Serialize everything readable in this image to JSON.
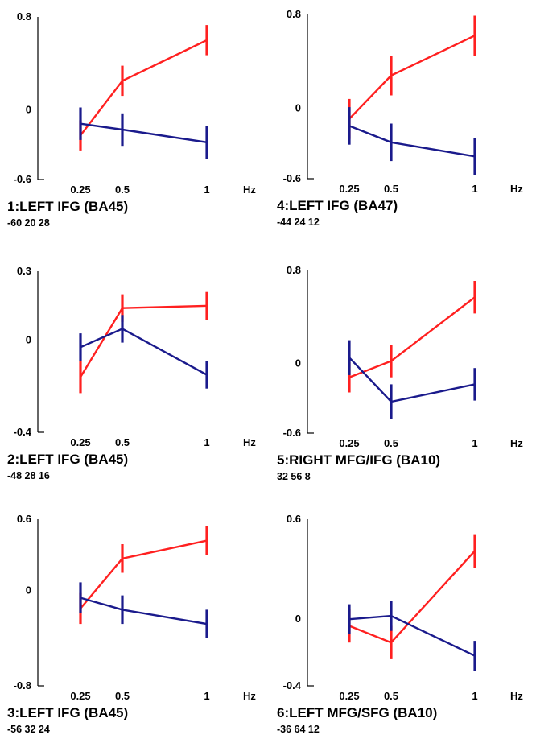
{
  "x_unit": "Hz",
  "series_colors": {
    "red": "#ff2020",
    "blue": "#1a1a8c"
  },
  "chart_data": [
    {
      "type": "line",
      "title": "1:LEFT IFG (BA45)",
      "coords": "-60 20 28",
      "x": [
        0.25,
        0.5,
        1
      ],
      "x_tick_labels": [
        "0.25",
        "0.5",
        "1"
      ],
      "ylim": [
        -0.6,
        0.8
      ],
      "y_ticks": [
        0.8,
        0,
        -0.6
      ],
      "y_tick_labels": [
        "0.8",
        "0",
        "-0.6"
      ],
      "series": [
        {
          "color": "red",
          "values": [
            -0.22,
            0.25,
            0.6
          ],
          "err": [
            0.13,
            0.13,
            0.13
          ]
        },
        {
          "color": "blue",
          "values": [
            -0.12,
            -0.17,
            -0.28
          ],
          "err": [
            0.14,
            0.14,
            0.14
          ]
        }
      ]
    },
    {
      "type": "line",
      "title": "4:LEFT IFG (BA47)",
      "coords": "-44 24 12",
      "x": [
        0.25,
        0.5,
        1
      ],
      "x_tick_labels": [
        "0.25",
        "0.5",
        "1"
      ],
      "ylim": [
        -0.6,
        0.8
      ],
      "y_ticks": [
        0.8,
        0,
        -0.6
      ],
      "y_tick_labels": [
        "0.8",
        "0",
        "-0.6"
      ],
      "series": [
        {
          "color": "red",
          "values": [
            -0.09,
            0.28,
            0.62
          ],
          "err": [
            0.17,
            0.17,
            0.17
          ]
        },
        {
          "color": "blue",
          "values": [
            -0.15,
            -0.29,
            -0.41
          ],
          "err": [
            0.16,
            0.16,
            0.16
          ]
        }
      ]
    },
    {
      "type": "line",
      "title": "2:LEFT IFG (BA45)",
      "coords": "-48 28 16",
      "x": [
        0.25,
        0.5,
        1
      ],
      "x_tick_labels": [
        "0.25",
        "0.5",
        "1"
      ],
      "ylim": [
        -0.4,
        0.3
      ],
      "y_ticks": [
        0.3,
        0,
        -0.4
      ],
      "y_tick_labels": [
        "0.3",
        "0",
        "-0.4"
      ],
      "series": [
        {
          "color": "red",
          "values": [
            -0.16,
            0.14,
            0.15
          ],
          "err": [
            0.07,
            0.06,
            0.06
          ]
        },
        {
          "color": "blue",
          "values": [
            -0.03,
            0.05,
            -0.15
          ],
          "err": [
            0.06,
            0.06,
            0.06
          ]
        }
      ]
    },
    {
      "type": "line",
      "title": "5:RIGHT MFG/IFG (BA10)",
      "coords": "32 56 8",
      "x": [
        0.25,
        0.5,
        1
      ],
      "x_tick_labels": [
        "0.25",
        "0.5",
        "1"
      ],
      "ylim": [
        -0.6,
        0.8
      ],
      "y_ticks": [
        0.8,
        0,
        -0.6
      ],
      "y_tick_labels": [
        "0.8",
        "0",
        "-0.6"
      ],
      "series": [
        {
          "color": "red",
          "values": [
            -0.12,
            0.02,
            0.57
          ],
          "err": [
            0.13,
            0.14,
            0.14
          ]
        },
        {
          "color": "blue",
          "values": [
            0.05,
            -0.33,
            -0.18
          ],
          "err": [
            0.15,
            0.15,
            0.14
          ]
        }
      ]
    },
    {
      "type": "line",
      "title": "3:LEFT IFG (BA45)",
      "coords": "-56 32 24",
      "x": [
        0.25,
        0.5,
        1
      ],
      "x_tick_labels": [
        "0.25",
        "0.5",
        "1"
      ],
      "ylim": [
        -0.8,
        0.6
      ],
      "y_ticks": [
        0.6,
        0,
        -0.8
      ],
      "y_tick_labels": [
        "0.6",
        "0",
        "-0.8"
      ],
      "series": [
        {
          "color": "red",
          "values": [
            -0.15,
            0.27,
            0.42
          ],
          "err": [
            0.13,
            0.12,
            0.12
          ]
        },
        {
          "color": "blue",
          "values": [
            -0.06,
            -0.16,
            -0.28
          ],
          "err": [
            0.13,
            0.12,
            0.12
          ]
        }
      ]
    },
    {
      "type": "line",
      "title": "6:LEFT MFG/SFG (BA10)",
      "coords": "-36 64 12",
      "x": [
        0.25,
        0.5,
        1
      ],
      "x_tick_labels": [
        "0.25",
        "0.5",
        "1"
      ],
      "ylim": [
        -0.4,
        0.6
      ],
      "y_ticks": [
        0.6,
        0,
        -0.4
      ],
      "y_tick_labels": [
        "0.6",
        "0",
        "-0.4"
      ],
      "series": [
        {
          "color": "red",
          "values": [
            -0.04,
            -0.14,
            0.41
          ],
          "err": [
            0.1,
            0.1,
            0.1
          ]
        },
        {
          "color": "blue",
          "values": [
            0.0,
            0.02,
            -0.22
          ],
          "err": [
            0.09,
            0.09,
            0.09
          ]
        }
      ]
    }
  ]
}
